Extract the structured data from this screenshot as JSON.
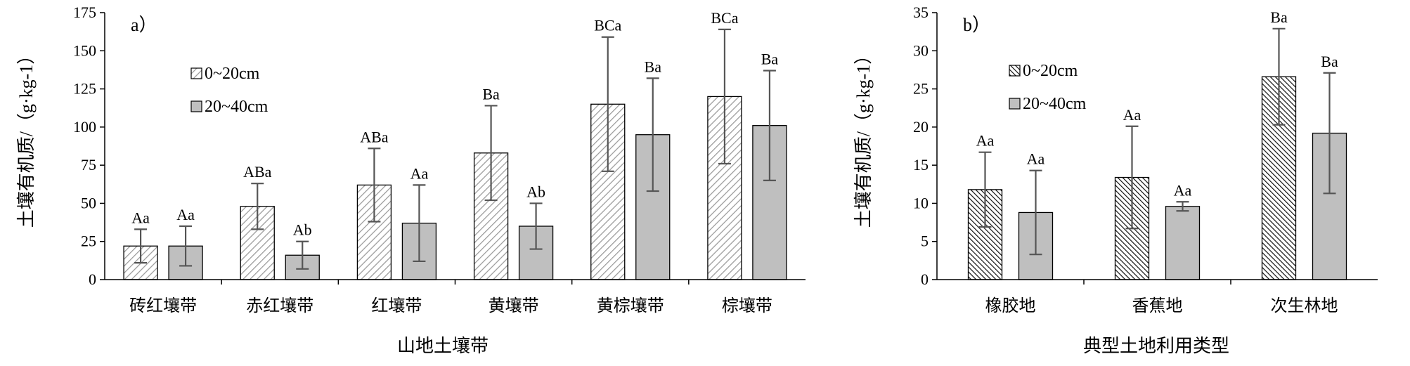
{
  "colors": {
    "series0_fill_pattern": "hatch-light",
    "series1_fill": "#bfbfbf",
    "axis": "#000000",
    "error_bar": "#555555"
  },
  "chart_data": [
    {
      "type": "bar",
      "panel_label": "a）",
      "categories": [
        "砖红壤带",
        "赤红壤带",
        "红壤带",
        "黄壤带",
        "黄棕壤带",
        "棕壤带"
      ],
      "series": [
        {
          "name": "0~20cm",
          "values": [
            22,
            48,
            62,
            83,
            115,
            120
          ],
          "error": [
            11,
            15,
            24,
            31,
            44,
            44
          ],
          "labels": [
            "Aa",
            "ABa",
            "ABa",
            "Ba",
            "BCa",
            "BCa"
          ],
          "pattern": "diagonal-light"
        },
        {
          "name": "20~40cm",
          "values": [
            22,
            16,
            37,
            35,
            95,
            101
          ],
          "error": [
            13,
            9,
            25,
            15,
            37,
            36
          ],
          "labels": [
            "Aa",
            "Ab",
            "Aa",
            "Ab",
            "Ba",
            "Ba"
          ],
          "pattern": "solid-gray"
        }
      ],
      "xlabel": "山地土壤带",
      "ylabel": "土壤有机质/（g·kg-1）",
      "ylim": [
        0,
        175
      ],
      "yticks": [
        0,
        25,
        50,
        75,
        100,
        125,
        150,
        175
      ],
      "grid": false,
      "legend_position": "upper-left"
    },
    {
      "type": "bar",
      "panel_label": "b）",
      "categories": [
        "橡胶地",
        "香蕉地",
        "次生林地"
      ],
      "series": [
        {
          "name": "0~20cm",
          "values": [
            11.8,
            13.4,
            26.6
          ],
          "error": [
            4.9,
            6.7,
            6.3
          ],
          "labels": [
            "Aa",
            "Aa",
            "Ba"
          ],
          "pattern": "diagonal-dense"
        },
        {
          "name": "20~40cm",
          "values": [
            8.8,
            9.6,
            19.2
          ],
          "error": [
            5.5,
            0.6,
            7.9
          ],
          "labels": [
            "Aa",
            "Aa",
            "Ba"
          ],
          "pattern": "solid-gray"
        }
      ],
      "xlabel": "典型土地利用类型",
      "ylabel": "土壤有机质/（g·kg-1）",
      "ylim": [
        0,
        35
      ],
      "yticks": [
        0,
        5,
        10,
        15,
        20,
        25,
        30,
        35
      ],
      "grid": false,
      "legend_position": "upper-left"
    }
  ]
}
